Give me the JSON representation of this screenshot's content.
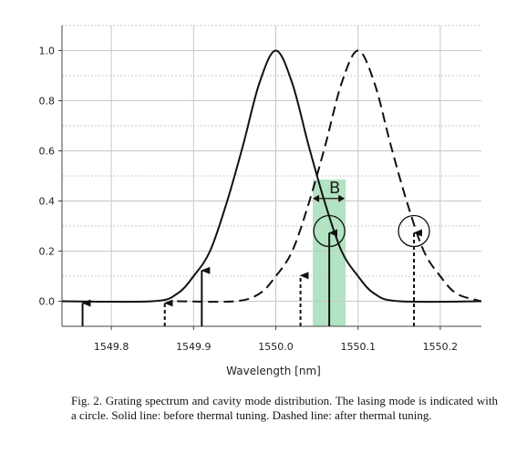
{
  "chart_data": {
    "type": "line",
    "xlabel": "Wavelength [nm]",
    "ylabel": "",
    "xlim": [
      1549.74,
      1550.25
    ],
    "ylim": [
      -0.1,
      1.1
    ],
    "xticks": [
      1549.8,
      1549.9,
      1550.0,
      1550.1,
      1550.2
    ],
    "xtick_labels": [
      "1549.8",
      "1549.9",
      "1550.0",
      "1550.1",
      "1550.2"
    ],
    "yticks": [
      0.0,
      0.2,
      0.4,
      0.6,
      0.8,
      1.0
    ],
    "ytick_labels": [
      "0.0",
      "0.2",
      "0.4",
      "0.6",
      "0.8",
      "1.0"
    ],
    "grid": true,
    "series": [
      {
        "style": "solid",
        "x": [
          1549.74,
          1549.85,
          1549.88,
          1549.9,
          1549.92,
          1549.94,
          1549.96,
          1549.98,
          1550.0,
          1550.02,
          1550.04,
          1550.06,
          1550.08,
          1550.1,
          1550.12,
          1550.15,
          1550.25
        ],
        "values": [
          0.0,
          0.0,
          0.03,
          0.1,
          0.2,
          0.39,
          0.62,
          0.87,
          1.0,
          0.87,
          0.62,
          0.39,
          0.2,
          0.1,
          0.03,
          0.0,
          0.0
        ]
      },
      {
        "style": "dashed",
        "x": [
          1549.88,
          1549.95,
          1549.98,
          1550.0,
          1550.02,
          1550.04,
          1550.06,
          1550.08,
          1550.1,
          1550.12,
          1550.14,
          1550.16,
          1550.18,
          1550.2,
          1550.22,
          1550.25
        ],
        "values": [
          0.0,
          0.0,
          0.03,
          0.1,
          0.2,
          0.39,
          0.62,
          0.87,
          1.0,
          0.87,
          0.62,
          0.39,
          0.2,
          0.1,
          0.03,
          0.0
        ]
      }
    ],
    "cavity_modes": [
      {
        "x": 1549.765,
        "height": 0.0,
        "style": "solid"
      },
      {
        "x": 1549.865,
        "height": 0.0,
        "style": "dashed"
      },
      {
        "x": 1549.91,
        "height": 0.13,
        "style": "solid"
      },
      {
        "x": 1550.03,
        "height": 0.11,
        "style": "dashed"
      },
      {
        "x": 1550.065,
        "height": 0.28,
        "style": "solid"
      },
      {
        "x": 1550.168,
        "height": 0.28,
        "style": "dashed"
      }
    ],
    "lasing_modes": [
      {
        "x": 1550.065,
        "y": 0.28
      },
      {
        "x": 1550.168,
        "y": 0.28
      }
    ],
    "band": {
      "x0": 1550.045,
      "x1": 1550.085,
      "color": "#9fdcb4"
    },
    "band_label": "B",
    "colors": {
      "line": "#111111",
      "grid": "#c8c8c8",
      "axis": "#444444"
    }
  },
  "caption": "Fig. 2.   Grating spectrum and cavity mode distribution. The lasing mode is indicated with a circle. Solid line: before thermal tuning. Dashed line: after thermal tuning."
}
